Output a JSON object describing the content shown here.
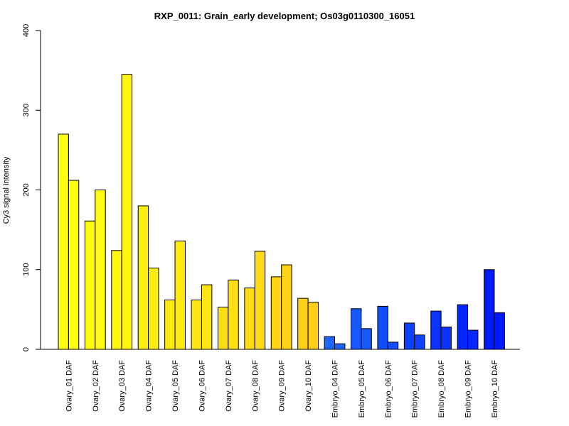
{
  "chart_data": {
    "type": "bar",
    "title": "RXP_0011: Grain_early development; Os03g0110300_16051",
    "xlabel": "",
    "ylabel": "Cy3 signal intensity",
    "ylim": [
      0,
      400
    ],
    "yticks": [
      0,
      100,
      200,
      300,
      400
    ],
    "grid": false,
    "categories": [
      "Ovary_01 DAF",
      "Ovary_02 DAF",
      "Ovary_03 DAF",
      "Ovary_04 DAF",
      "Ovary_05 DAF",
      "Ovary_06 DAF",
      "Ovary_07 DAF",
      "Ovary_08 DAF",
      "Ovary_09 DAF",
      "Ovary_10 DAF",
      "Embryo_04 DAF",
      "Embryo_05 DAF",
      "Embryo_06 DAF",
      "Embryo_07 DAF",
      "Embryo_08 DAF",
      "Embryo_09 DAF",
      "Embryo_10 DAF"
    ],
    "colors": [
      "#FFFF0E",
      "#FFFA0F",
      "#FFF510",
      "#FFEF11",
      "#FFEA12",
      "#FFE413",
      "#FFDF14",
      "#FFDA15",
      "#FFD416",
      "#FFCF17",
      "#1A66FF",
      "#1559FF",
      "#114DFF",
      "#0D40FF",
      "#0933FF",
      "#0426FF",
      "#0019FF"
    ],
    "series": [
      {
        "values": [
          270,
          161,
          124,
          180,
          62,
          62,
          53,
          77,
          91,
          64,
          16,
          51,
          54,
          33,
          48,
          56,
          100
        ]
      },
      {
        "values": [
          212,
          200,
          345,
          102,
          136,
          81,
          87,
          123,
          106,
          59,
          7,
          26,
          9,
          18,
          28,
          24,
          46
        ]
      }
    ]
  }
}
